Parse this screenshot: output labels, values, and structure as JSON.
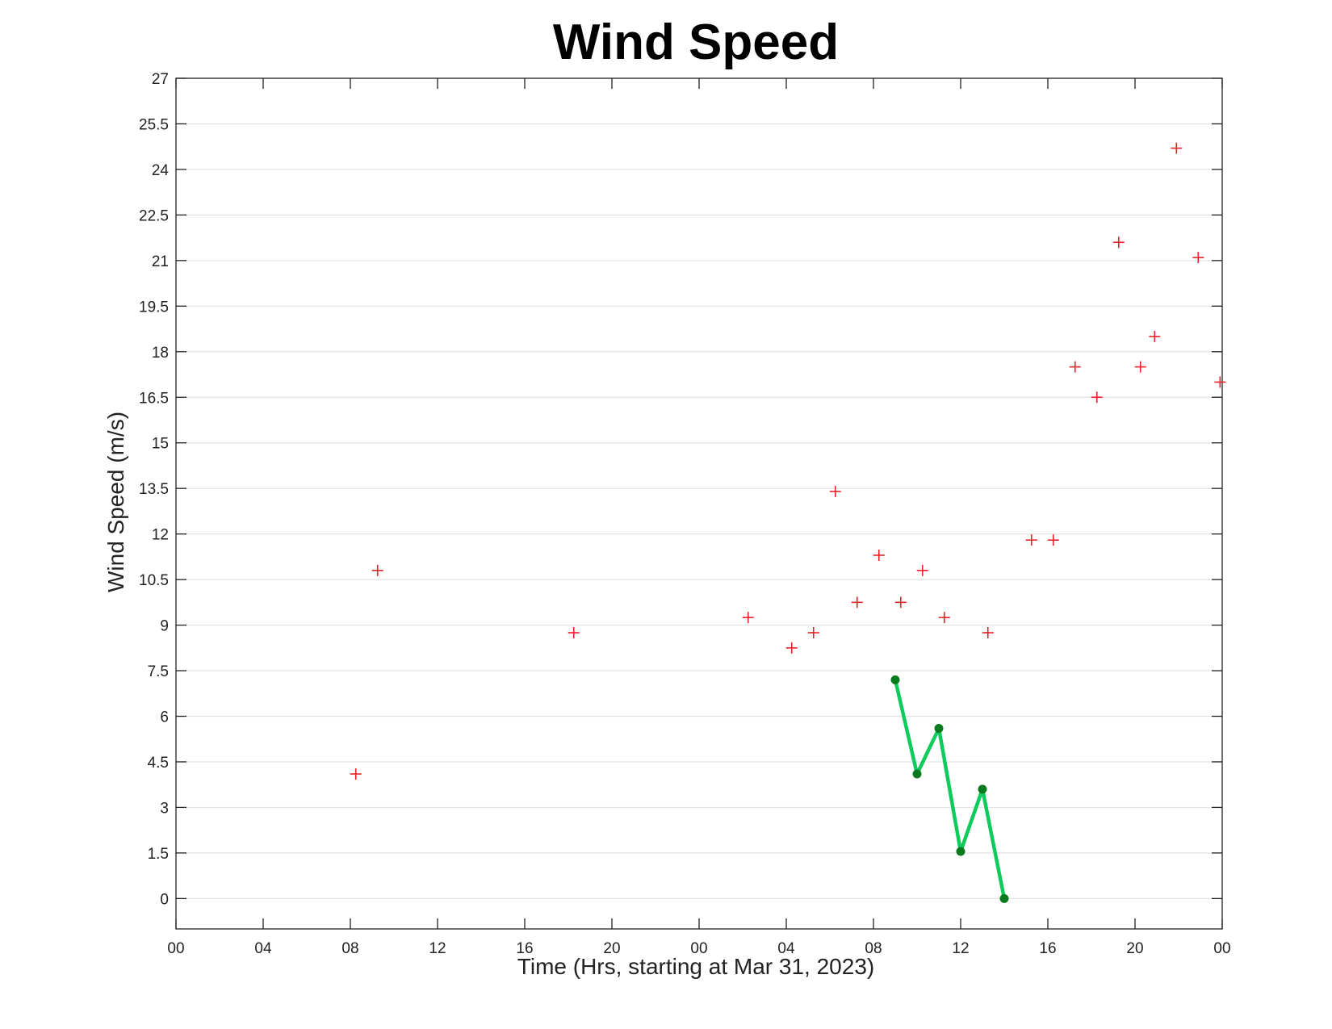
{
  "chart_data": {
    "type": "scatter",
    "title": "Wind Speed",
    "xlabel": "Time (Hrs, starting at Mar 31, 2023)",
    "ylabel": "Wind Speed (m/s)",
    "x_unit": "hours",
    "xlim": [
      0,
      48
    ],
    "ylim": [
      -1,
      27
    ],
    "x_ticks": [
      0,
      4,
      8,
      12,
      16,
      20,
      24,
      28,
      32,
      36,
      40,
      44,
      48
    ],
    "x_tick_labels": [
      "00",
      "04",
      "08",
      "12",
      "16",
      "20",
      "00",
      "04",
      "08",
      "12",
      "16",
      "20",
      "00"
    ],
    "y_ticks": [
      0,
      1.5,
      3,
      4.5,
      6,
      7.5,
      9,
      10.5,
      12,
      13.5,
      15,
      16.5,
      18,
      19.5,
      21,
      22.5,
      24,
      25.5,
      27
    ],
    "y_tick_labels": [
      "0",
      "1.5",
      "3",
      "4.5",
      "6",
      "7.5",
      "9",
      "10.5",
      "12",
      "13.5",
      "15",
      "16.5",
      "18",
      "19.5",
      "21",
      "22.5",
      "24",
      "25.5",
      "27"
    ],
    "grid": "horizontal",
    "series": [
      {
        "marker": "plus",
        "color": "#e8212a",
        "x": [
          8.25,
          9.25,
          18.25,
          26.25,
          28.25,
          29.25,
          30.25,
          31.25,
          32.25,
          33.25,
          34.25,
          35.25,
          37.25,
          39.25,
          40.25,
          41.25,
          42.25,
          43.25,
          44.25,
          44.9,
          45.9,
          46.9,
          47.9
        ],
        "y": [
          4.1,
          10.8,
          8.75,
          9.25,
          8.25,
          8.75,
          13.4,
          9.75,
          11.3,
          9.75,
          10.8,
          9.25,
          8.75,
          11.8,
          11.8,
          17.5,
          16.5,
          21.6,
          17.5,
          18.5,
          24.7,
          21.1,
          17.0
        ]
      },
      {
        "marker": "dot-line",
        "color": "#0ecb5c",
        "marker_color": "#0a7a1e",
        "x": [
          33,
          34,
          35,
          36,
          37,
          38
        ],
        "y": [
          7.2,
          4.1,
          5.6,
          1.55,
          3.6,
          0
        ]
      }
    ]
  }
}
